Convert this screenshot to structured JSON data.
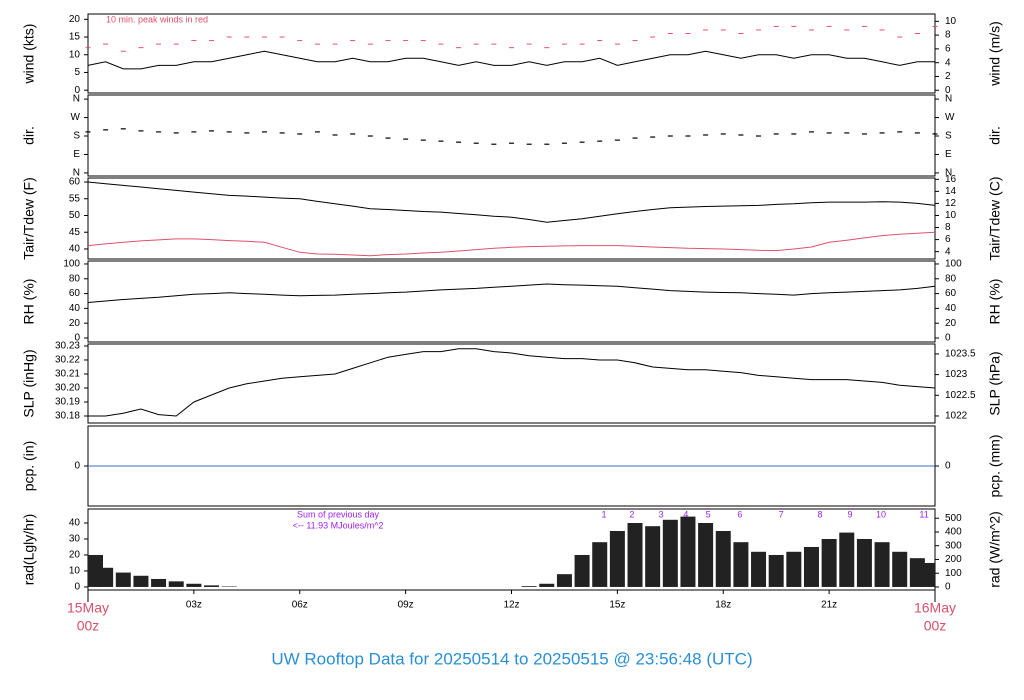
{
  "chart_data": [
    {
      "type": "line",
      "ylabel": "wind (kts)",
      "y2label": "wind (m/s)",
      "annotation": "10 min. peak winds in red",
      "x": [
        0,
        0.5,
        1,
        1.5,
        2,
        2.5,
        3,
        3.5,
        4,
        4.5,
        5,
        5.5,
        6,
        6.5,
        7,
        7.5,
        8,
        8.5,
        9,
        9.5,
        10,
        10.5,
        11,
        11.5,
        12,
        12.5,
        13,
        13.5,
        14,
        14.5,
        15,
        15.5,
        16,
        16.5,
        17,
        17.5,
        18,
        18.5,
        19,
        19.5,
        20,
        20.5,
        21,
        21.5,
        22,
        22.5,
        23,
        23.5,
        24
      ],
      "xlim": [
        0,
        24
      ],
      "ylim": [
        -0.8,
        21.5
      ],
      "yticks": [
        0,
        5,
        10,
        15,
        20
      ],
      "y2lim": [
        -0.4,
        11.06
      ],
      "y2ticks": [
        0,
        2,
        4,
        6,
        8,
        10
      ],
      "series": [
        {
          "name": "wind",
          "color": "#000000",
          "style": "line",
          "values": [
            7,
            8,
            6,
            6,
            7,
            7,
            8,
            8,
            9,
            10,
            11,
            10,
            9,
            8,
            8,
            9,
            8,
            8,
            9,
            9,
            8,
            7,
            8,
            7,
            7,
            8,
            7,
            8,
            8,
            9,
            7,
            8,
            9,
            10,
            10,
            11,
            10,
            9,
            10,
            10,
            9,
            10,
            10,
            9,
            9,
            8,
            7,
            8,
            8
          ]
        },
        {
          "name": "peak",
          "color": "#e0506a",
          "style": "dash",
          "values": [
            12,
            13,
            11,
            12,
            13,
            13,
            14,
            14,
            15,
            15,
            15,
            15,
            14,
            13,
            13,
            14,
            13,
            14,
            14,
            14,
            13,
            12,
            13,
            13,
            12,
            13,
            12,
            13,
            13,
            14,
            13,
            14,
            15,
            16,
            16,
            17,
            17,
            16,
            17,
            18,
            18,
            17,
            18,
            17,
            18,
            17,
            15,
            16,
            18
          ]
        }
      ]
    },
    {
      "type": "scatter",
      "ylabel": "dir.",
      "y2label": "dir.",
      "x": [
        0,
        0.5,
        1,
        1.5,
        2,
        2.5,
        3,
        3.5,
        4,
        4.5,
        5,
        5.5,
        6,
        6.5,
        7,
        7.5,
        8,
        8.5,
        9,
        9.5,
        10,
        10.5,
        11,
        11.5,
        12,
        12.5,
        13,
        13.5,
        14,
        14.5,
        15,
        15.5,
        16,
        16.5,
        17,
        17.5,
        18,
        18.5,
        19,
        19.5,
        20,
        20.5,
        21,
        21.5,
        22,
        22.5,
        23,
        23.5,
        24
      ],
      "xlim": [
        0,
        24
      ],
      "ylim": [
        -15,
        380
      ],
      "yticks": [
        {
          "value": 0,
          "label": "N"
        },
        {
          "value": 90,
          "label": "E"
        },
        {
          "value": 180,
          "label": "S"
        },
        {
          "value": 270,
          "label": "W"
        },
        {
          "value": 360,
          "label": "N"
        }
      ],
      "y2lim": [
        -15,
        380
      ],
      "y2ticks": [
        {
          "value": 0,
          "label": "N"
        },
        {
          "value": 90,
          "label": "E"
        },
        {
          "value": 180,
          "label": "S"
        },
        {
          "value": 270,
          "label": "W"
        },
        {
          "value": 360,
          "label": "N"
        }
      ],
      "series": [
        {
          "name": "dir",
          "color": "#000000",
          "values": [
            200,
            210,
            215,
            205,
            200,
            195,
            200,
            205,
            200,
            195,
            200,
            195,
            190,
            200,
            185,
            190,
            180,
            170,
            165,
            160,
            155,
            150,
            145,
            140,
            145,
            140,
            140,
            145,
            150,
            155,
            160,
            170,
            175,
            180,
            180,
            185,
            190,
            185,
            180,
            190,
            190,
            200,
            195,
            195,
            190,
            195,
            200,
            195,
            190
          ]
        }
      ]
    },
    {
      "type": "line",
      "ylabel": "Tair/Tdew (F)",
      "y2label": "Tair/Tdew (C)",
      "x": [
        0,
        0.5,
        1,
        1.5,
        2,
        2.5,
        3,
        3.5,
        4,
        4.5,
        5,
        5.5,
        6,
        6.5,
        7,
        7.5,
        8,
        8.5,
        9,
        9.5,
        10,
        10.5,
        11,
        11.5,
        12,
        12.5,
        13,
        13.5,
        14,
        14.5,
        15,
        15.5,
        16,
        16.5,
        17,
        17.5,
        18,
        18.5,
        19,
        19.5,
        20,
        20.5,
        21,
        21.5,
        22,
        22.5,
        23,
        23.5,
        24
      ],
      "xlim": [
        0,
        24
      ],
      "ylim": [
        37,
        61.2
      ],
      "yticks": [
        40,
        45,
        50,
        55,
        60
      ],
      "y2lim": [
        2.78,
        16.22
      ],
      "y2ticks": [
        4,
        6,
        8,
        10,
        12,
        14,
        16
      ],
      "series": [
        {
          "name": "Tair",
          "color": "#000000",
          "style": "line",
          "values": [
            60,
            59.5,
            59,
            58.5,
            58,
            57.5,
            57,
            56.5,
            56,
            55.8,
            55.5,
            55.2,
            55,
            54.2,
            53.5,
            52.8,
            52,
            51.8,
            51.5,
            51.2,
            51,
            50.6,
            50.2,
            49.8,
            49.5,
            48.8,
            48,
            48.5,
            49,
            49.8,
            50.5,
            51.2,
            51.8,
            52.3,
            52.5,
            52.7,
            52.8,
            52.9,
            53,
            53.3,
            53.5,
            53.8,
            54,
            54,
            54,
            54.1,
            54,
            53.6,
            53
          ]
        },
        {
          "name": "Tdew",
          "color": "#e0506a",
          "style": "line",
          "values": [
            41,
            41.5,
            42,
            42.4,
            42.7,
            43,
            43,
            42.8,
            42.5,
            42.3,
            42,
            40.5,
            39,
            38.5,
            38.4,
            38.2,
            38,
            38.3,
            38.5,
            38.8,
            39,
            39.4,
            39.8,
            40.2,
            40.5,
            40.7,
            40.8,
            40.9,
            41,
            41,
            41,
            40.8,
            40.6,
            40.4,
            40.2,
            40.1,
            40,
            39.8,
            39.6,
            39.5,
            40,
            40.6,
            42,
            42.6,
            43.3,
            44,
            44.4,
            44.7,
            45
          ]
        }
      ]
    },
    {
      "type": "line",
      "ylabel": "RH (%)",
      "y2label": "RH (%)",
      "x": [
        0,
        0.5,
        1,
        1.5,
        2,
        2.5,
        3,
        3.5,
        4,
        4.5,
        5,
        5.5,
        6,
        6.5,
        7,
        7.5,
        8,
        8.5,
        9,
        9.5,
        10,
        10.5,
        11,
        11.5,
        12,
        12.5,
        13,
        13.5,
        14,
        14.5,
        15,
        15.5,
        16,
        16.5,
        17,
        17.5,
        18,
        18.5,
        19,
        19.5,
        20,
        20.5,
        21,
        21.5,
        22,
        22.5,
        23,
        23.5,
        24
      ],
      "xlim": [
        0,
        24
      ],
      "ylim": [
        -5.4,
        104
      ],
      "yticks": [
        0,
        20,
        40,
        60,
        80,
        100
      ],
      "y2lim": [
        -5.4,
        104
      ],
      "y2ticks": [
        0,
        20,
        40,
        60,
        80,
        100
      ],
      "series": [
        {
          "name": "RH",
          "color": "#000000",
          "style": "line",
          "values": [
            48,
            50,
            52,
            53.5,
            55,
            57,
            59,
            60,
            61,
            60,
            59,
            58,
            57,
            57.5,
            58,
            59,
            60,
            61,
            62,
            63.5,
            65,
            66,
            67,
            68.5,
            70,
            71.5,
            73,
            72,
            71.5,
            70.5,
            70,
            68,
            66,
            64,
            63,
            62,
            61.5,
            61,
            60,
            59,
            58,
            60,
            61,
            62,
            63,
            64,
            65,
            67,
            70
          ]
        }
      ]
    },
    {
      "type": "line",
      "ylabel": "SLP (inHg)",
      "y2label": "SLP (hPa)",
      "x": [
        0,
        0.5,
        1,
        1.5,
        2,
        2.5,
        3,
        3.5,
        4,
        4.5,
        5,
        5.5,
        6,
        6.5,
        7,
        7.5,
        8,
        8.5,
        9,
        9.5,
        10,
        10.5,
        11,
        11.5,
        12,
        12.5,
        13,
        13.5,
        14,
        14.5,
        15,
        15.5,
        16,
        16.5,
        17,
        17.5,
        18,
        18.5,
        19,
        19.5,
        20,
        20.5,
        21,
        21.5,
        22,
        22.5,
        23,
        23.5,
        24
      ],
      "xlim": [
        0,
        24
      ],
      "ylim": [
        30.175,
        30.2314
      ],
      "yticks": [
        30.18,
        30.19,
        {
          "value": 30.2,
          "label": "30.20"
        },
        30.21,
        30.22,
        30.23
      ],
      "y2lim": [
        1021.83,
        1023.74
      ],
      "y2ticks": [
        1022,
        1022.5,
        1023,
        1023.5
      ],
      "series": [
        {
          "name": "SLP",
          "color": "#000000",
          "style": "line",
          "values": [
            30.18,
            30.18,
            30.182,
            30.185,
            30.181,
            30.18,
            30.19,
            30.195,
            30.2,
            30.203,
            30.205,
            30.207,
            30.208,
            30.209,
            30.21,
            30.214,
            30.218,
            30.222,
            30.224,
            30.226,
            30.226,
            30.228,
            30.228,
            30.226,
            30.225,
            30.223,
            30.222,
            30.221,
            30.221,
            30.22,
            30.22,
            30.218,
            30.215,
            30.214,
            30.213,
            30.213,
            30.212,
            30.211,
            30.209,
            30.208,
            30.207,
            30.206,
            30.206,
            30.206,
            30.205,
            30.204,
            30.202,
            30.201,
            30.2
          ]
        }
      ]
    },
    {
      "type": "line",
      "ylabel": "pcp. (in)",
      "y2label": "pcp. (mm)",
      "x": [
        0,
        0.5,
        1,
        1.5,
        2,
        2.5,
        3,
        3.5,
        4,
        4.5,
        5,
        5.5,
        6,
        6.5,
        7,
        7.5,
        8,
        8.5,
        9,
        9.5,
        10,
        10.5,
        11,
        11.5,
        12,
        12.5,
        13,
        13.5,
        14,
        14.5,
        15,
        15.5,
        16,
        16.5,
        17,
        17.5,
        18,
        18.5,
        19,
        19.5,
        20,
        20.5,
        21,
        21.5,
        22,
        22.5,
        23,
        23.5,
        24
      ],
      "xlim": [
        0,
        24
      ],
      "ylim": [
        -0.05,
        0.05
      ],
      "yticks": [
        0
      ],
      "y2lim": [
        -1.27,
        1.27
      ],
      "y2ticks": [
        0
      ],
      "series": [
        {
          "name": "pcp",
          "color": "#3a6fc0",
          "style": "line",
          "values": [
            0,
            0,
            0,
            0,
            0,
            0,
            0,
            0,
            0,
            0,
            0,
            0,
            0,
            0,
            0,
            0,
            0,
            0,
            0,
            0,
            0,
            0,
            0,
            0,
            0,
            0,
            0,
            0,
            0,
            0,
            0,
            0,
            0,
            0,
            0,
            0,
            0,
            0,
            0,
            0,
            0,
            0,
            0,
            0,
            0,
            0,
            0,
            0,
            0
          ]
        }
      ]
    },
    {
      "type": "bar",
      "ylabel": "rad(Lgly/hr)",
      "y2label": "rad (W/m^2)",
      "annotation": "Sum of previous day",
      "annotation2": "<-- 11.93 MJoules/m^2",
      "hour_marks": [
        1,
        2,
        3,
        4,
        5,
        6,
        7,
        8,
        9,
        10,
        11
      ],
      "hour_marks_x": [
        14.62,
        15.41,
        16.24,
        16.94,
        17.57,
        18.47,
        19.64,
        20.74,
        21.59,
        22.47,
        23.69
      ],
      "x": [
        0,
        0.5,
        1,
        1.5,
        2,
        2.5,
        3,
        3.5,
        4,
        4.5,
        5,
        5.5,
        6,
        6.5,
        7,
        7.5,
        8,
        8.5,
        9,
        9.5,
        10,
        10.5,
        11,
        11.5,
        12,
        12.5,
        13,
        13.5,
        14,
        14.5,
        15,
        15.5,
        16,
        16.5,
        17,
        17.5,
        18,
        18.5,
        19,
        19.5,
        20,
        20.5,
        21,
        21.5,
        22,
        22.5,
        23,
        23.5,
        24
      ],
      "xlim": [
        0,
        24
      ],
      "ylim": [
        -1.9,
        48.75
      ],
      "yticks": [
        0,
        10,
        20,
        30,
        40
      ],
      "y2lim": [
        -22,
        567
      ],
      "y2ticks": [
        0,
        100,
        200,
        300,
        400,
        500
      ],
      "xticks": [
        {
          "value": 0,
          "label": "15May",
          "sublabel": "00z"
        },
        {
          "value": 3,
          "label": "03z"
        },
        {
          "value": 6,
          "label": "06z"
        },
        {
          "value": 9,
          "label": "09z"
        },
        {
          "value": 12,
          "label": "12z"
        },
        {
          "value": 15,
          "label": "15z"
        },
        {
          "value": 18,
          "label": "18z"
        },
        {
          "value": 21,
          "label": "21z"
        },
        {
          "value": 24,
          "label": "16May",
          "sublabel": "00z"
        }
      ],
      "series": [
        {
          "name": "rad",
          "color": "#222222",
          "values": [
            20,
            12,
            9,
            7,
            5,
            3.5,
            2,
            1,
            0.3,
            0,
            0,
            0,
            0,
            0,
            0,
            0,
            0,
            0,
            0,
            0,
            0,
            0,
            0,
            0,
            0,
            0.5,
            2,
            8,
            20,
            28,
            35,
            40,
            38,
            42,
            44,
            40,
            35,
            28,
            22,
            20,
            22,
            25,
            30,
            34,
            30,
            28,
            22,
            18,
            15
          ]
        }
      ]
    }
  ],
  "footer": "UW Rooftop Data for 20250514  to  20250515 @ 23:56:48  (UTC)"
}
